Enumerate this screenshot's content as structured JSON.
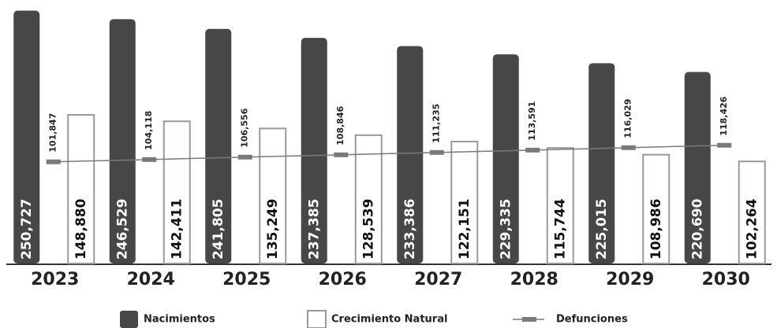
{
  "chart_data": {
    "type": "bar",
    "categories": [
      "2023",
      "2024",
      "2025",
      "2026",
      "2027",
      "2028",
      "2029",
      "2030"
    ],
    "ylim": [
      127000,
      254000
    ],
    "y2lim": [
      0,
      260000
    ],
    "series": [
      {
        "name": "Nacimientos",
        "color": "#474747",
        "values": [
          250727,
          246529,
          241805,
          237385,
          233386,
          229335,
          225015,
          220690
        ],
        "value_labels": [
          "250,727",
          "246,529",
          "241,805",
          "237,385",
          "233,386",
          "229,335",
          "225,015",
          "220,690"
        ]
      },
      {
        "name": "Crecimiento Natural",
        "color": "#ffffff",
        "axis": "y2",
        "values": [
          148880,
          142411,
          135249,
          128539,
          122151,
          115744,
          108986,
          102264
        ],
        "value_labels": [
          "148,880",
          "142,411",
          "135,249",
          "128,539",
          "122,151",
          "115,744",
          "108,986",
          "102,264"
        ]
      },
      {
        "name": "Defunciones",
        "type": "line",
        "color": "#7a7a7a",
        "axis": "y2",
        "values": [
          101847,
          104118,
          106556,
          108846,
          111235,
          113591,
          116029,
          118426
        ],
        "value_labels": [
          "101,847",
          "104,118",
          "106,556",
          "108,846",
          "111,235",
          "113,591",
          "116,029",
          "118,426"
        ]
      }
    ]
  }
}
